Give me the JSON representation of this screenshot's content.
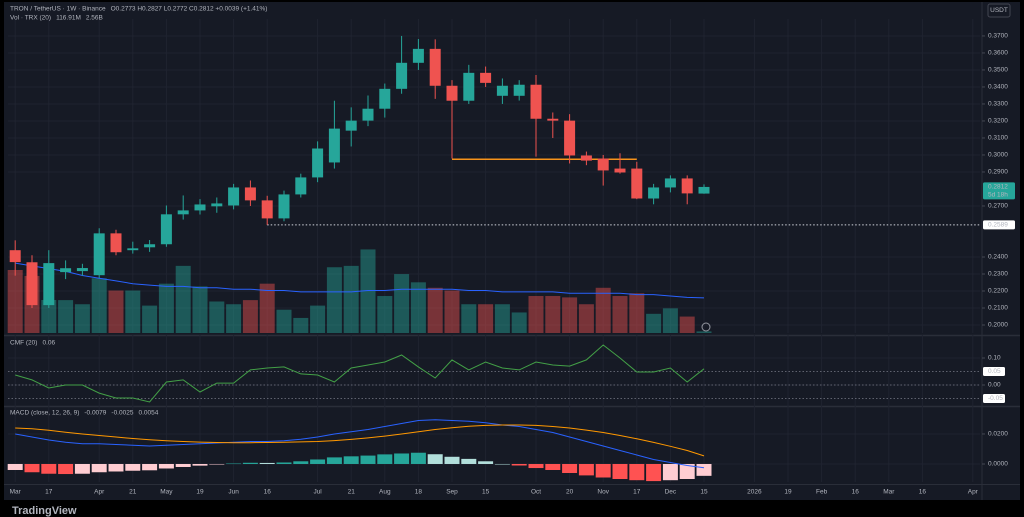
{
  "chart_data": {
    "type": "candlestick",
    "title": "TRON / TetherUS · 1W · Binance",
    "subtitle": "O0.2773 H0.2827 L0.2772 C0.2812 +0.0039 (+1.41%)",
    "currency": "USDT",
    "brand": "TradingView",
    "x": [
      "2025-03-03",
      "2025-03-10",
      "2025-03-17",
      "2025-03-24",
      "2025-03-31",
      "2025-04-07",
      "2025-04-14",
      "2025-04-21",
      "2025-04-28",
      "2025-05-05",
      "2025-05-12",
      "2025-05-19",
      "2025-05-26",
      "2025-06-02",
      "2025-06-09",
      "2025-06-16",
      "2025-06-23",
      "2025-06-30",
      "2025-07-07",
      "2025-07-14",
      "2025-07-21",
      "2025-07-28",
      "2025-08-04",
      "2025-08-11",
      "2025-08-18",
      "2025-08-25",
      "2025-09-01",
      "2025-09-08",
      "2025-09-15",
      "2025-09-22",
      "2025-09-29",
      "2025-10-06",
      "2025-10-13",
      "2025-10-20",
      "2025-10-27",
      "2025-11-03",
      "2025-11-10",
      "2025-11-17",
      "2025-11-24",
      "2025-12-01",
      "2025-12-08",
      "2025-12-15"
    ],
    "open": [
      0.244,
      0.2369,
      0.2117,
      0.2311,
      0.2317,
      0.2293,
      0.2539,
      0.244,
      0.2457,
      0.2475,
      0.2651,
      0.2674,
      0.2698,
      0.2703,
      0.2809,
      0.2733,
      0.2627,
      0.2768,
      0.2868,
      0.2956,
      0.3143,
      0.3202,
      0.3272,
      0.3389,
      0.3542,
      0.3624,
      0.3407,
      0.3319,
      0.3483,
      0.3348,
      0.3348,
      0.3413,
      0.3213,
      0.3202,
      0.2997,
      0.2979,
      0.292,
      0.292,
      0.2744,
      0.2809,
      0.2862,
      0.2773
    ],
    "high": [
      0.2498,
      0.241,
      0.244,
      0.238,
      0.236,
      0.2569,
      0.256,
      0.249,
      0.25,
      0.2703,
      0.2762,
      0.274,
      0.275,
      0.283,
      0.285,
      0.276,
      0.279,
      0.289,
      0.308,
      0.3319,
      0.328,
      0.335,
      0.342,
      0.37,
      0.3682,
      0.368,
      0.344,
      0.353,
      0.352,
      0.345,
      0.344,
      0.347,
      0.325,
      0.324,
      0.302,
      0.3,
      0.301,
      0.296,
      0.283,
      0.288,
      0.288,
      0.2827
    ],
    "low": [
      0.229,
      0.21,
      0.21,
      0.227,
      0.229,
      0.2276,
      0.241,
      0.242,
      0.243,
      0.246,
      0.262,
      0.265,
      0.266,
      0.268,
      0.27,
      0.2589,
      0.261,
      0.275,
      0.284,
      0.292,
      0.305,
      0.317,
      0.322,
      0.336,
      0.35,
      0.333,
      0.2979,
      0.33,
      0.34,
      0.33,
      0.332,
      0.299,
      0.31,
      0.295,
      0.294,
      0.282,
      0.289,
      0.274,
      0.271,
      0.278,
      0.271,
      0.2772
    ],
    "close": [
      0.237,
      0.2117,
      0.2364,
      0.2334,
      0.2335,
      0.2539,
      0.2428,
      0.2451,
      0.2475,
      0.2651,
      0.2674,
      0.2709,
      0.2715,
      0.2809,
      0.2733,
      0.2627,
      0.2768,
      0.2868,
      0.3038,
      0.3155,
      0.3202,
      0.3272,
      0.3389,
      0.3542,
      0.3624,
      0.3407,
      0.3319,
      0.3483,
      0.3424,
      0.3407,
      0.3413,
      0.3213,
      0.3202,
      0.2997,
      0.2967,
      0.2909,
      0.2897,
      0.2744,
      0.2809,
      0.2862,
      0.2774,
      0.2812
    ],
    "up_color": "#26a69a",
    "down_color": "#ef5350",
    "ylim": [
      0.1953,
      0.3782
    ],
    "yticks": [
      {
        "value": 0.37,
        "label": "0.3700"
      },
      {
        "value": 0.36,
        "label": "0.3600"
      },
      {
        "value": 0.35,
        "label": "0.3500"
      },
      {
        "value": 0.34,
        "label": "0.3400"
      },
      {
        "value": 0.33,
        "label": "0.3300"
      },
      {
        "value": 0.32,
        "label": "0.3200"
      },
      {
        "value": 0.31,
        "label": "0.3100"
      },
      {
        "value": 0.3,
        "label": "0.3000"
      },
      {
        "value": 0.29,
        "label": "0.2900"
      },
      {
        "value": 0.27,
        "label": "0.2700"
      },
      {
        "value": 0.24,
        "label": "0.2400"
      },
      {
        "value": 0.23,
        "label": "0.2300"
      },
      {
        "value": 0.22,
        "label": "0.2200"
      },
      {
        "value": 0.21,
        "label": "0.2100"
      },
      {
        "value": 0.2,
        "label": "0.2000"
      }
    ],
    "grid": true,
    "hlines": [
      {
        "value": 0.2975,
        "from": "2025-09-01",
        "to": "2025-11-17",
        "color": "#f7931a",
        "style": "solid"
      },
      {
        "value": 0.2589,
        "from": "2025-06-16",
        "color": "#d1d4dc",
        "style": "dotted"
      }
    ],
    "price_labels": [
      {
        "value": 0.2812,
        "label": "0.2812",
        "sub": "5d 18h",
        "color": "#26a69a"
      },
      {
        "value": 0.2589,
        "label": "0.2589",
        "color": "#ffffff"
      }
    ],
    "volume": {
      "title": "Vol · TRX (20)",
      "legend_values": [
        "116.91M",
        "2.56B"
      ],
      "values": [
        4.6,
        4.17,
        2.41,
        2.4,
        2.1,
        4.0,
        3.1,
        3.1,
        2.0,
        3.6,
        4.9,
        3.4,
        2.3,
        2.1,
        2.4,
        3.6,
        1.7,
        1.1,
        2.0,
        4.8,
        4.9,
        6.1,
        2.7,
        4.3,
        3.7,
        3.3,
        3.1,
        2.1,
        2.1,
        2.1,
        1.5,
        2.7,
        2.7,
        2.6,
        2.1,
        3.3,
        2.7,
        2.9,
        1.4,
        1.8,
        1.2,
        0.11691
      ],
      "ma": [
        5.1,
        4.9,
        4.7,
        4.5,
        4.2,
        4.0,
        3.8,
        3.6,
        3.5,
        3.4,
        3.4,
        3.3,
        3.3,
        3.2,
        3.2,
        3.1,
        3.1,
        3.0,
        3.0,
        3.0,
        3.0,
        3.1,
        3.1,
        3.2,
        3.2,
        3.2,
        3.2,
        3.1,
        3.1,
        3.0,
        3.0,
        3.0,
        3.0,
        2.9,
        2.9,
        2.9,
        2.9,
        2.8,
        2.8,
        2.7,
        2.6,
        2.56
      ],
      "ma_color": "#2962ff",
      "ylim": [
        0,
        10
      ]
    },
    "panes": [
      {
        "type": "line",
        "title": "CMF (20)",
        "legend_values": [
          "0.06"
        ],
        "series": [
          {
            "color": "#43a047",
            "values": [
              0.037,
              0.019,
              -0.011,
              0,
              0,
              -0.03,
              -0.048,
              -0.048,
              -0.063,
              0.011,
              0.019,
              -0.026,
              0.007,
              0.007,
              0.056,
              0.063,
              0.067,
              0.041,
              0.037,
              0.011,
              0.063,
              0.074,
              0.085,
              0.111,
              0.067,
              0.026,
              0.093,
              0.056,
              0.085,
              0.063,
              0.056,
              0.085,
              0.074,
              0.07,
              0.093,
              0.148,
              0.1,
              0.048,
              0.048,
              0.063,
              0.011,
              0.06
            ]
          }
        ],
        "ylim": [
          -0.074,
          0.174
        ],
        "yticks": [
          {
            "value": 0.1,
            "label": "0.10"
          },
          {
            "value": 0,
            "label": "0.00"
          }
        ],
        "hlines": [
          {
            "value": 0.05,
            "label": "0.05"
          },
          {
            "value": 0
          },
          {
            "value": -0.05,
            "label": "-0.05"
          }
        ]
      },
      {
        "type": "macd",
        "title": "MACD (close, 12, 26, 9)",
        "legend_values": [
          "-0.0079",
          "-0.0025",
          "0.0054"
        ],
        "series": [
          {
            "style": "histogram",
            "color": "#ef5350",
            "colors": [
              "#26a69a",
              "#b2dfdb",
              "#ffcdd2",
              "#ff5252"
            ],
            "values": [
              -0.004,
              -0.0055,
              -0.0065,
              -0.0067,
              -0.0065,
              -0.0055,
              -0.005,
              -0.0045,
              -0.0042,
              -0.003,
              -0.002,
              -0.0011,
              -0.0003,
              0.0003,
              0.0008,
              0.0007,
              0.001,
              0.0018,
              0.003,
              0.0044,
              0.0051,
              0.0056,
              0.0064,
              0.007,
              0.0075,
              0.0065,
              0.0048,
              0.0034,
              0.0018,
              0.0,
              -0.001,
              -0.0027,
              -0.004,
              -0.006,
              -0.0076,
              -0.009,
              -0.01,
              -0.0108,
              -0.0114,
              -0.0108,
              -0.01,
              -0.0079
            ]
          },
          {
            "style": "line",
            "color": "#2962ff",
            "values": [
              0.02,
              0.018,
              0.016,
              0.0145,
              0.0135,
              0.0135,
              0.013,
              0.0125,
              0.012,
              0.0125,
              0.013,
              0.0135,
              0.014,
              0.0145,
              0.015,
              0.015,
              0.0155,
              0.0165,
              0.018,
              0.02,
              0.0215,
              0.023,
              0.025,
              0.027,
              0.029,
              0.0295,
              0.029,
              0.0285,
              0.0275,
              0.026,
              0.025,
              0.023,
              0.021,
              0.018,
              0.015,
              0.012,
              0.009,
              0.006,
              0.003,
              0.001,
              -0.001,
              -0.0025
            ]
          },
          {
            "style": "line",
            "color": "#ff9800",
            "values": [
              0.024,
              0.0235,
              0.0225,
              0.0212,
              0.02,
              0.019,
              0.018,
              0.017,
              0.0162,
              0.0155,
              0.015,
              0.0146,
              0.0143,
              0.0142,
              0.0142,
              0.0143,
              0.0145,
              0.0147,
              0.015,
              0.0156,
              0.0164,
              0.0174,
              0.0186,
              0.02,
              0.0215,
              0.023,
              0.0242,
              0.0251,
              0.0257,
              0.026,
              0.026,
              0.0257,
              0.025,
              0.024,
              0.0226,
              0.021,
              0.019,
              0.0168,
              0.0144,
              0.0118,
              0.009,
              0.0054
            ]
          }
        ],
        "ylim": [
          -0.012,
          0.0373
        ],
        "yticks": [
          {
            "value": 0.02,
            "label": "0.0200"
          },
          {
            "value": 0,
            "label": "0.0000"
          }
        ]
      }
    ],
    "xlim": [
      "2025-02-28",
      "2026-04-09"
    ],
    "xticks": [
      {
        "value": "2025-03-03",
        "label": "Mar"
      },
      {
        "value": "2025-03-17",
        "label": "17"
      },
      {
        "value": "2025-04-07",
        "label": "Apr"
      },
      {
        "value": "2025-04-21",
        "label": "21"
      },
      {
        "value": "2025-05-05",
        "label": "May"
      },
      {
        "value": "2025-05-19",
        "label": "19"
      },
      {
        "value": "2025-06-02",
        "label": "Jun"
      },
      {
        "value": "2025-06-16",
        "label": "16"
      },
      {
        "value": "2025-07-07",
        "label": "Jul"
      },
      {
        "value": "2025-07-21",
        "label": "21"
      },
      {
        "value": "2025-08-04",
        "label": "Aug"
      },
      {
        "value": "2025-08-18",
        "label": "18"
      },
      {
        "value": "2025-09-01",
        "label": "Sep"
      },
      {
        "value": "2025-09-15",
        "label": "15"
      },
      {
        "value": "2025-10-06",
        "label": "Oct"
      },
      {
        "value": "2025-10-20",
        "label": "20"
      },
      {
        "value": "2025-11-03",
        "label": "Nov"
      },
      {
        "value": "2025-11-17",
        "label": "17"
      },
      {
        "value": "2025-12-01",
        "label": "Dec"
      },
      {
        "value": "2025-12-15",
        "label": "15"
      },
      {
        "value": "2026-01-05",
        "label": "2026"
      },
      {
        "value": "2026-01-19",
        "label": "19"
      },
      {
        "value": "2026-02-02",
        "label": "Feb"
      },
      {
        "value": "2026-02-16",
        "label": "16"
      },
      {
        "value": "2026-03-02",
        "label": "Mar"
      },
      {
        "value": "2026-03-16",
        "label": "16"
      },
      {
        "value": "2026-04-06",
        "label": "Apr"
      }
    ]
  }
}
